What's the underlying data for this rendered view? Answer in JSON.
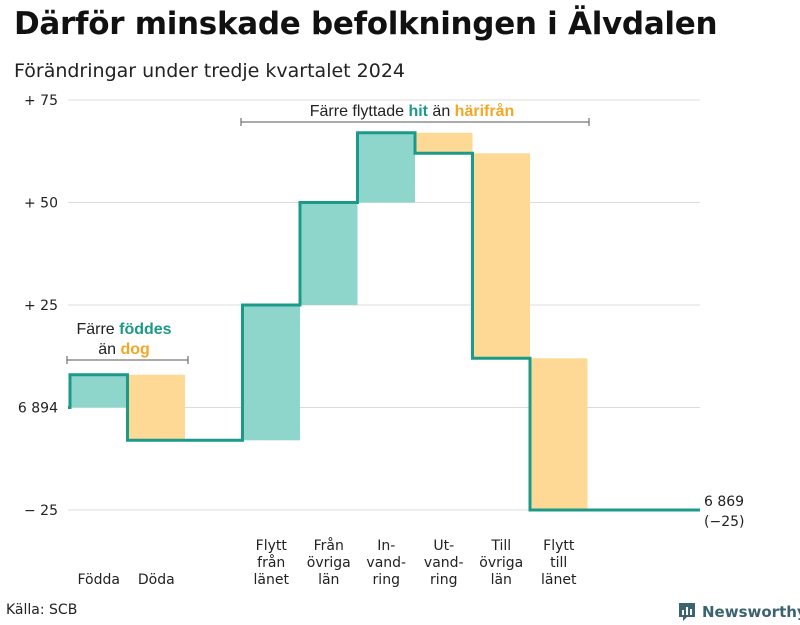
{
  "title": "Därför minskade befolkningen i Älvdalen",
  "subtitle": "Förändringar under tredje kvartalet 2024",
  "source": "Källa: SCB",
  "brand": "Newsworthy",
  "colors": {
    "increase": "#8ed6cc",
    "decrease": "#fdd995",
    "line": "#1c9a89",
    "teal_text": "#1c9a89",
    "orange_text": "#f5a623"
  },
  "annotations": {
    "births": {
      "line1_prefix": "Färre ",
      "line1_highlight": "föddes",
      "line2_prefix": "än ",
      "line2_highlight": "dog"
    },
    "migration": {
      "prefix": "Färre flyttade ",
      "highlight1": "hit",
      "middle": " än ",
      "highlight2": "härifrån"
    }
  },
  "end_label": {
    "value": "6 869",
    "change": "(−25)"
  },
  "chart_data": {
    "type": "waterfall",
    "start_value": 6894,
    "end_value": 6869,
    "y_tick_labels": [
      "+ 75",
      "+ 50",
      "+ 25",
      "6 894",
      "− 25"
    ],
    "y_ticks": [
      75,
      50,
      25,
      0,
      -25
    ],
    "ylim": [
      -25,
      75
    ],
    "components": [
      {
        "label": "Födda",
        "change": 8
      },
      {
        "label": "Döda",
        "change": -16
      },
      {
        "label": "Flytt från länet",
        "change": 33
      },
      {
        "label": "Från övriga län",
        "change": 25
      },
      {
        "label": "In-vandring",
        "change": 17
      },
      {
        "label": "Ut-vandring",
        "change": -5
      },
      {
        "label": "Till övriga län",
        "change": -50
      },
      {
        "label": "Flytt till länet",
        "change": -37
      }
    ],
    "category_label_lines": [
      [
        "Födda"
      ],
      [
        "Döda"
      ],
      [
        "Flytt",
        "från",
        "länet"
      ],
      [
        "Från",
        "övriga",
        "län"
      ],
      [
        "In-",
        "vand-",
        "ring"
      ],
      [
        "Ut-",
        "vand-",
        "ring"
      ],
      [
        "Till",
        "övriga",
        "län"
      ],
      [
        "Flytt",
        "till",
        "länet"
      ]
    ]
  }
}
